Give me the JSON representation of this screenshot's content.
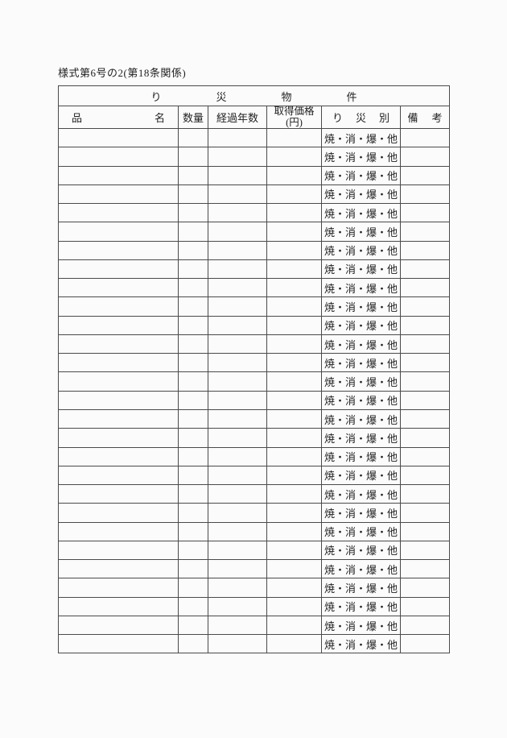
{
  "form": {
    "number": "様式第6号の2(第18条関係)"
  },
  "colors": {
    "border": "#4a4a4a",
    "outer_border": "#3a3a3a",
    "text": "#222222",
    "background": "#fbfbfb"
  },
  "table": {
    "title": "り災物件",
    "title_chars": [
      "り",
      "災",
      "物",
      "件"
    ],
    "headers": {
      "item_name_first": "品",
      "item_name_second": "名",
      "quantity": "数量",
      "elapsed_years": "経過年数",
      "acquisition_price_line1": "取得価格",
      "acquisition_price_line2": "(円)",
      "damage_category_chars": [
        "り",
        "災",
        "別"
      ],
      "remarks_chars": [
        "備",
        "考"
      ]
    },
    "rows": [
      {
        "item_name": "",
        "quantity": "",
        "elapsed_years": "",
        "acquisition_price": "",
        "damage_type": "焼・消・爆・他",
        "remarks": ""
      },
      {
        "item_name": "",
        "quantity": "",
        "elapsed_years": "",
        "acquisition_price": "",
        "damage_type": "焼・消・爆・他",
        "remarks": ""
      },
      {
        "item_name": "",
        "quantity": "",
        "elapsed_years": "",
        "acquisition_price": "",
        "damage_type": "焼・消・爆・他",
        "remarks": ""
      },
      {
        "item_name": "",
        "quantity": "",
        "elapsed_years": "",
        "acquisition_price": "",
        "damage_type": "焼・消・爆・他",
        "remarks": ""
      },
      {
        "item_name": "",
        "quantity": "",
        "elapsed_years": "",
        "acquisition_price": "",
        "damage_type": "焼・消・爆・他",
        "remarks": ""
      },
      {
        "item_name": "",
        "quantity": "",
        "elapsed_years": "",
        "acquisition_price": "",
        "damage_type": "焼・消・爆・他",
        "remarks": ""
      },
      {
        "item_name": "",
        "quantity": "",
        "elapsed_years": "",
        "acquisition_price": "",
        "damage_type": "焼・消・爆・他",
        "remarks": ""
      },
      {
        "item_name": "",
        "quantity": "",
        "elapsed_years": "",
        "acquisition_price": "",
        "damage_type": "焼・消・爆・他",
        "remarks": ""
      },
      {
        "item_name": "",
        "quantity": "",
        "elapsed_years": "",
        "acquisition_price": "",
        "damage_type": "焼・消・爆・他",
        "remarks": ""
      },
      {
        "item_name": "",
        "quantity": "",
        "elapsed_years": "",
        "acquisition_price": "",
        "damage_type": "焼・消・爆・他",
        "remarks": ""
      },
      {
        "item_name": "",
        "quantity": "",
        "elapsed_years": "",
        "acquisition_price": "",
        "damage_type": "焼・消・爆・他",
        "remarks": ""
      },
      {
        "item_name": "",
        "quantity": "",
        "elapsed_years": "",
        "acquisition_price": "",
        "damage_type": "焼・消・爆・他",
        "remarks": ""
      },
      {
        "item_name": "",
        "quantity": "",
        "elapsed_years": "",
        "acquisition_price": "",
        "damage_type": "焼・消・爆・他",
        "remarks": ""
      },
      {
        "item_name": "",
        "quantity": "",
        "elapsed_years": "",
        "acquisition_price": "",
        "damage_type": "焼・消・爆・他",
        "remarks": ""
      },
      {
        "item_name": "",
        "quantity": "",
        "elapsed_years": "",
        "acquisition_price": "",
        "damage_type": "焼・消・爆・他",
        "remarks": ""
      },
      {
        "item_name": "",
        "quantity": "",
        "elapsed_years": "",
        "acquisition_price": "",
        "damage_type": "焼・消・爆・他",
        "remarks": ""
      },
      {
        "item_name": "",
        "quantity": "",
        "elapsed_years": "",
        "acquisition_price": "",
        "damage_type": "焼・消・爆・他",
        "remarks": ""
      },
      {
        "item_name": "",
        "quantity": "",
        "elapsed_years": "",
        "acquisition_price": "",
        "damage_type": "焼・消・爆・他",
        "remarks": ""
      },
      {
        "item_name": "",
        "quantity": "",
        "elapsed_years": "",
        "acquisition_price": "",
        "damage_type": "焼・消・爆・他",
        "remarks": ""
      },
      {
        "item_name": "",
        "quantity": "",
        "elapsed_years": "",
        "acquisition_price": "",
        "damage_type": "焼・消・爆・他",
        "remarks": ""
      },
      {
        "item_name": "",
        "quantity": "",
        "elapsed_years": "",
        "acquisition_price": "",
        "damage_type": "焼・消・爆・他",
        "remarks": ""
      },
      {
        "item_name": "",
        "quantity": "",
        "elapsed_years": "",
        "acquisition_price": "",
        "damage_type": "焼・消・爆・他",
        "remarks": ""
      },
      {
        "item_name": "",
        "quantity": "",
        "elapsed_years": "",
        "acquisition_price": "",
        "damage_type": "焼・消・爆・他",
        "remarks": ""
      },
      {
        "item_name": "",
        "quantity": "",
        "elapsed_years": "",
        "acquisition_price": "",
        "damage_type": "焼・消・爆・他",
        "remarks": ""
      },
      {
        "item_name": "",
        "quantity": "",
        "elapsed_years": "",
        "acquisition_price": "",
        "damage_type": "焼・消・爆・他",
        "remarks": ""
      },
      {
        "item_name": "",
        "quantity": "",
        "elapsed_years": "",
        "acquisition_price": "",
        "damage_type": "焼・消・爆・他",
        "remarks": ""
      },
      {
        "item_name": "",
        "quantity": "",
        "elapsed_years": "",
        "acquisition_price": "",
        "damage_type": "焼・消・爆・他",
        "remarks": ""
      },
      {
        "item_name": "",
        "quantity": "",
        "elapsed_years": "",
        "acquisition_price": "",
        "damage_type": "焼・消・爆・他",
        "remarks": ""
      }
    ]
  }
}
